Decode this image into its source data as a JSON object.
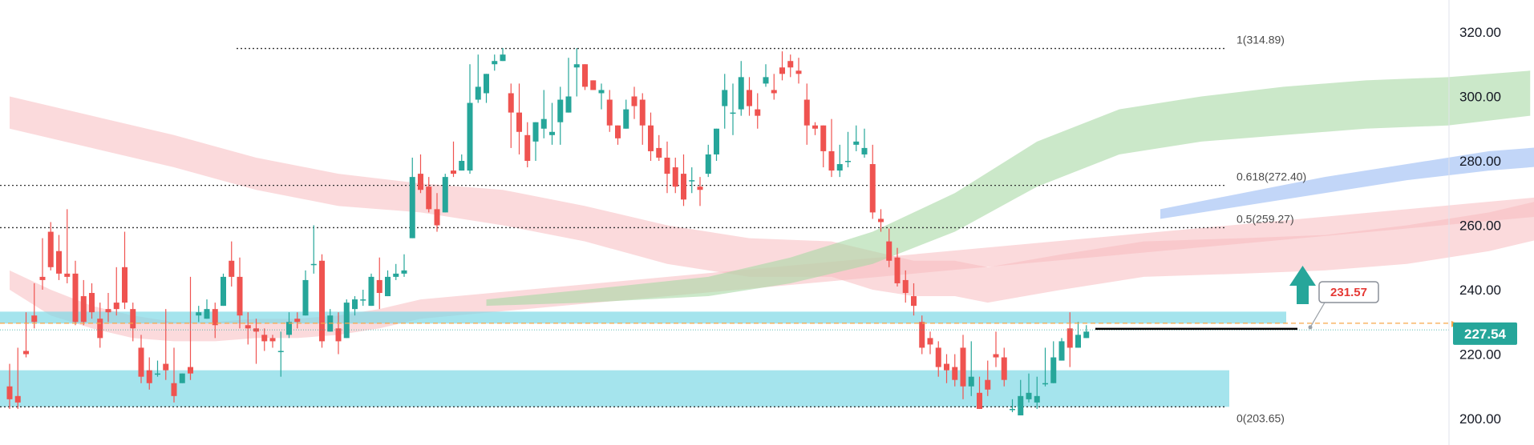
{
  "chart_data": {
    "type": "candlestick",
    "ylim": [
      195,
      323
    ],
    "y_ticks": [
      "320.00",
      "300.00",
      "280.00",
      "260.00",
      "240.00",
      "220.00",
      "200.00"
    ],
    "y_tick_values": [
      320,
      300,
      280,
      260,
      240,
      220,
      200
    ],
    "grid": false,
    "colors": {
      "up": "#26a69a",
      "down": "#ef5350",
      "price_tag": "#26a69a",
      "current_line": "#f7a74a",
      "zone": "#7fd8e6",
      "arrow": "#26a69a",
      "callout_text": "#e53935",
      "band_red": "#f8bcc0",
      "band_green": "#a8d8a5",
      "band_blue": "#a8c4f5"
    },
    "candles": [
      [
        210,
        217,
        206,
        203
      ],
      [
        207,
        222,
        205,
        203
      ],
      [
        221,
        233,
        220,
        219
      ],
      [
        232,
        242,
        230,
        228
      ],
      [
        244,
        256,
        243,
        240
      ],
      [
        258,
        261,
        247,
        246
      ],
      [
        252,
        257,
        245,
        243
      ],
      [
        245,
        265,
        244,
        242
      ],
      [
        245,
        249,
        230,
        229
      ],
      [
        238,
        243,
        230,
        229
      ],
      [
        239,
        242,
        233,
        231
      ],
      [
        231,
        236,
        225,
        222
      ],
      [
        234,
        239,
        233,
        230
      ],
      [
        236,
        247,
        234,
        232
      ],
      [
        247,
        258,
        236,
        234
      ],
      [
        234,
        236,
        228,
        224
      ],
      [
        222,
        226,
        213,
        211
      ],
      [
        215,
        219,
        211,
        209
      ],
      [
        214,
        218,
        214,
        213
      ],
      [
        217,
        234,
        215,
        212
      ],
      [
        211,
        222,
        207,
        205
      ],
      [
        211,
        214,
        214,
        212
      ],
      [
        216,
        244,
        214,
        212
      ],
      [
        232,
        235,
        233,
        230
      ],
      [
        231,
        237,
        234,
        231
      ],
      [
        234,
        236,
        229,
        225
      ],
      [
        235,
        245,
        244,
        241
      ],
      [
        249,
        255,
        244,
        241
      ],
      [
        244,
        250,
        232,
        228
      ],
      [
        229,
        233,
        228,
        223
      ],
      [
        228,
        231,
        227,
        217
      ],
      [
        226,
        228,
        224,
        221
      ],
      [
        225,
        226,
        224,
        222
      ],
      [
        221,
        227,
        221,
        213
      ],
      [
        226,
        233,
        230,
        225
      ],
      [
        231,
        233,
        230,
        228
      ],
      [
        232,
        246,
        243,
        241
      ],
      [
        248,
        260,
        248,
        245
      ],
      [
        249,
        251,
        224,
        222
      ],
      [
        227,
        234,
        232,
        229
      ],
      [
        228,
        233,
        224,
        220
      ],
      [
        225,
        237,
        236,
        232
      ],
      [
        234,
        238,
        237,
        232
      ],
      [
        237,
        240,
        237,
        235
      ],
      [
        235,
        245,
        244,
        240
      ],
      [
        243,
        250,
        239,
        234
      ],
      [
        238,
        246,
        244,
        241
      ],
      [
        244,
        248,
        245,
        243
      ],
      [
        245,
        251,
        246,
        244
      ],
      [
        256,
        281,
        275,
        275
      ],
      [
        276,
        282,
        271,
        270
      ],
      [
        272,
        275,
        265,
        264
      ],
      [
        265,
        270,
        260,
        258
      ],
      [
        264,
        276,
        275,
        271
      ],
      [
        277,
        286,
        276,
        275
      ],
      [
        277,
        282,
        280,
        278
      ],
      [
        277,
        310,
        298,
        276
      ],
      [
        299,
        313,
        303,
        298
      ],
      [
        301,
        304,
        307,
        298
      ],
      [
        310,
        313,
        311,
        308
      ],
      [
        311,
        315,
        313,
        311
      ],
      [
        301,
        304,
        295,
        284
      ],
      [
        295,
        304,
        289,
        282
      ],
      [
        288,
        292,
        280,
        278
      ],
      [
        286,
        291,
        292,
        280
      ],
      [
        290,
        302,
        293,
        287
      ],
      [
        288,
        298,
        289,
        285
      ],
      [
        292,
        303,
        299,
        285
      ],
      [
        295,
        312,
        300,
        298
      ],
      [
        309,
        315,
        310,
        300
      ],
      [
        310,
        306,
        303,
        302
      ],
      [
        305,
        301,
        302,
        303
      ],
      [
        301,
        304,
        302,
        296
      ],
      [
        299,
        302,
        291,
        289
      ],
      [
        291,
        290,
        287,
        285
      ],
      [
        290,
        299,
        296,
        290
      ],
      [
        300,
        303,
        297,
        293
      ],
      [
        299,
        301,
        291,
        285
      ],
      [
        291,
        295,
        283,
        280
      ],
      [
        284,
        288,
        281,
        280
      ],
      [
        281,
        286,
        276,
        270
      ],
      [
        278,
        281,
        272,
        270
      ],
      [
        276,
        282,
        268,
        266
      ],
      [
        274,
        278,
        274,
        270
      ],
      [
        272,
        275,
        271,
        266
      ],
      [
        276,
        285,
        282,
        275
      ],
      [
        282,
        288,
        290,
        280
      ],
      [
        297,
        307,
        302,
        290
      ],
      [
        295,
        304,
        295,
        288
      ],
      [
        296,
        311,
        306,
        294
      ],
      [
        302,
        306,
        297,
        294
      ],
      [
        296,
        301,
        294,
        290
      ],
      [
        304,
        310,
        306,
        303
      ],
      [
        302,
        307,
        301,
        299
      ],
      [
        309,
        314,
        307,
        305
      ],
      [
        311,
        313,
        309,
        306
      ],
      [
        308,
        312,
        307,
        304
      ],
      [
        299,
        304,
        291,
        285
      ],
      [
        291,
        292,
        290,
        288
      ],
      [
        291,
        291,
        283,
        278
      ],
      [
        283,
        293,
        277,
        275
      ],
      [
        277,
        285,
        279,
        275
      ],
      [
        280,
        289,
        280,
        278
      ],
      [
        285,
        291,
        286,
        283
      ],
      [
        282,
        290,
        284,
        281
      ],
      [
        279,
        285,
        264,
        262
      ],
      [
        262,
        265,
        261,
        258
      ],
      [
        255,
        259,
        249,
        247
      ],
      [
        250,
        253,
        242,
        241
      ],
      [
        243,
        246,
        239,
        236
      ],
      [
        238,
        242,
        235,
        232
      ],
      [
        230,
        232,
        222,
        220
      ],
      [
        225,
        227,
        223,
        220
      ],
      [
        222,
        224,
        216,
        213
      ],
      [
        217,
        220,
        215,
        211
      ],
      [
        216,
        220,
        212,
        210
      ],
      [
        222,
        226,
        210,
        206
      ],
      [
        210,
        224,
        213,
        207
      ],
      [
        208,
        213,
        203,
        203
      ],
      [
        212,
        218,
        209,
        207
      ],
      [
        220,
        227,
        219,
        216
      ],
      [
        219,
        222,
        212,
        210
      ],
      [
        203,
        206,
        203,
        202
      ],
      [
        201,
        212,
        207,
        206
      ],
      [
        206,
        214,
        208,
        205
      ],
      [
        205,
        213,
        207,
        203
      ],
      [
        211,
        222,
        211,
        210
      ],
      [
        211,
        224,
        219,
        215
      ],
      [
        218,
        225,
        224,
        221
      ],
      [
        228,
        233,
        222,
        216
      ],
      [
        222,
        230,
        226,
        222
      ],
      [
        225,
        229,
        227,
        225
      ]
    ],
    "fib_levels": [
      {
        "label": "1(314.89)",
        "value": 314.89
      },
      {
        "label": "0.618(272.40)",
        "value": 272.4
      },
      {
        "label": "0.5(259.27)",
        "value": 259.27
      },
      {
        "label": "0(203.65)",
        "value": 203.65
      }
    ],
    "zones": [
      {
        "from": 229.5,
        "to": 233.2
      },
      {
        "from": 203.65,
        "to": 215.0
      }
    ],
    "key_level": 231.57,
    "key_level_label": "231.57",
    "current_price": 229.6,
    "current_price_label": "227.54",
    "last_close_line": 227.54,
    "bands": {
      "red_slow": [
        [
          0,
          290,
          300
        ],
        [
          10,
          284,
          294
        ],
        [
          20,
          278,
          288
        ],
        [
          30,
          271,
          281
        ],
        [
          40,
          266,
          276
        ],
        [
          50,
          264,
          273
        ],
        [
          60,
          260,
          271
        ],
        [
          70,
          255,
          266
        ],
        [
          80,
          248,
          260
        ],
        [
          90,
          244,
          256
        ],
        [
          100,
          244,
          255
        ],
        [
          105,
          240,
          252
        ],
        [
          110,
          238,
          249
        ],
        [
          115,
          238,
          249
        ],
        [
          119,
          236,
          247
        ],
        [
          128,
          240,
          251
        ],
        [
          138,
          244,
          255
        ],
        [
          150,
          245,
          256
        ],
        [
          160,
          246,
          257
        ],
        [
          170,
          248,
          260
        ],
        [
          180,
          252,
          264
        ],
        [
          190,
          258,
          270
        ],
        [
          200,
          264,
          276
        ],
        [
          210,
          270,
          282
        ],
        [
          220,
          276,
          287
        ],
        [
          230,
          282,
          292
        ],
        [
          240,
          284,
          294
        ],
        [
          245,
          286,
          296
        ],
        [
          255,
          284,
          294
        ],
        [
          265,
          276,
          286
        ],
        [
          275,
          268,
          278
        ],
        [
          285,
          260,
          270
        ],
        [
          295,
          254,
          264
        ],
        [
          305,
          248,
          258
        ],
        [
          315,
          244,
          254
        ],
        [
          320,
          242,
          252
        ]
      ],
      "red_fast": [
        [
          0,
          240,
          246
        ],
        [
          5,
          232,
          240
        ],
        [
          10,
          228,
          235
        ],
        [
          15,
          225,
          232
        ],
        [
          20,
          224,
          230
        ],
        [
          25,
          224,
          230
        ],
        [
          30,
          225,
          231
        ],
        [
          35,
          225,
          231
        ],
        [
          40,
          226,
          232
        ],
        [
          45,
          228,
          234
        ],
        [
          50,
          231,
          237
        ],
        [
          260,
          280,
          286
        ],
        [
          265,
          272,
          278
        ],
        [
          270,
          262,
          268
        ],
        [
          275,
          252,
          258
        ],
        [
          280,
          244,
          250
        ],
        [
          285,
          238,
          244
        ],
        [
          290,
          232,
          238
        ],
        [
          295,
          226,
          232
        ],
        [
          300,
          222,
          228
        ],
        [
          305,
          220,
          226
        ],
        [
          310,
          220,
          226
        ],
        [
          315,
          221,
          227
        ]
      ],
      "green": [
        [
          58,
          235,
          237
        ],
        [
          70,
          236,
          240
        ],
        [
          85,
          238,
          244
        ],
        [
          95,
          242,
          250
        ],
        [
          105,
          248,
          258
        ],
        [
          115,
          258,
          270
        ],
        [
          125,
          272,
          286
        ],
        [
          135,
          282,
          296
        ],
        [
          145,
          286,
          300
        ],
        [
          155,
          288,
          303
        ],
        [
          165,
          290,
          305
        ],
        [
          175,
          291,
          306
        ],
        [
          185,
          294,
          308
        ]
      ],
      "green2": [
        [
          220,
          290,
          293
        ],
        [
          225,
          292,
          296
        ],
        [
          230,
          293,
          298
        ],
        [
          235,
          294,
          299
        ],
        [
          240,
          295,
          300
        ]
      ],
      "blue": [
        [
          140,
          262,
          265
        ],
        [
          150,
          266,
          270
        ],
        [
          160,
          270,
          275
        ],
        [
          170,
          274,
          279
        ],
        [
          180,
          277,
          283
        ],
        [
          190,
          279,
          285
        ],
        [
          200,
          280,
          286
        ],
        [
          210,
          281,
          287
        ],
        [
          220,
          283,
          289
        ],
        [
          230,
          285,
          291
        ],
        [
          240,
          287,
          293
        ],
        [
          250,
          287,
          293
        ],
        [
          255,
          284,
          291
        ],
        [
          260,
          281,
          288
        ],
        [
          265,
          280,
          286
        ]
      ]
    }
  }
}
